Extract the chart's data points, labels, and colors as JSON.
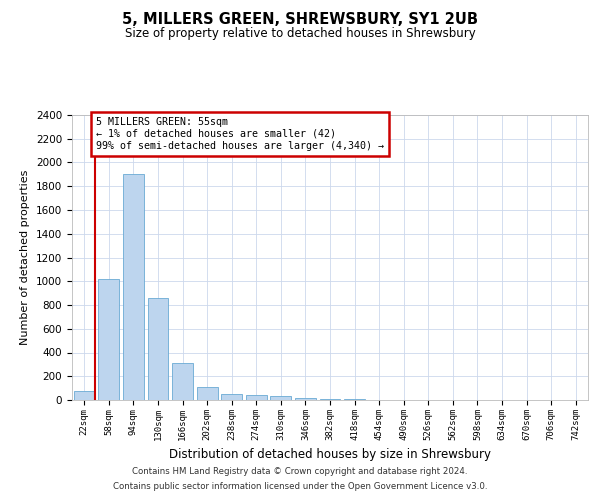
{
  "title": "5, MILLERS GREEN, SHREWSBURY, SY1 2UB",
  "subtitle": "Size of property relative to detached houses in Shrewsbury",
  "xlabel": "Distribution of detached houses by size in Shrewsbury",
  "ylabel": "Number of detached properties",
  "categories": [
    "22sqm",
    "58sqm",
    "94sqm",
    "130sqm",
    "166sqm",
    "202sqm",
    "238sqm",
    "274sqm",
    "310sqm",
    "346sqm",
    "382sqm",
    "418sqm",
    "454sqm",
    "490sqm",
    "526sqm",
    "562sqm",
    "598sqm",
    "634sqm",
    "670sqm",
    "706sqm",
    "742sqm"
  ],
  "values": [
    75,
    1020,
    1900,
    860,
    315,
    110,
    50,
    45,
    35,
    20,
    10,
    5,
    0,
    0,
    0,
    0,
    0,
    0,
    0,
    0,
    0
  ],
  "bar_color": "#bdd5ee",
  "bar_edge_color": "#6aaad4",
  "vline_color": "#cc0000",
  "annotation_text": "5 MILLERS GREEN: 55sqm\n← 1% of detached houses are smaller (42)\n99% of semi-detached houses are larger (4,340) →",
  "annotation_box_color": "#cc0000",
  "ylim": [
    0,
    2400
  ],
  "yticks": [
    0,
    200,
    400,
    600,
    800,
    1000,
    1200,
    1400,
    1600,
    1800,
    2000,
    2200,
    2400
  ],
  "footer_line1": "Contains HM Land Registry data © Crown copyright and database right 2024.",
  "footer_line2": "Contains public sector information licensed under the Open Government Licence v3.0.",
  "background_color": "#ffffff",
  "grid_color": "#ccd8ec",
  "title_fontsize": 10.5,
  "subtitle_fontsize": 8.5,
  "ylabel_fontsize": 8,
  "xlabel_fontsize": 8.5,
  "tick_fontsize": 7.5,
  "xtick_fontsize": 6.5,
  "footer_fontsize": 6.2
}
